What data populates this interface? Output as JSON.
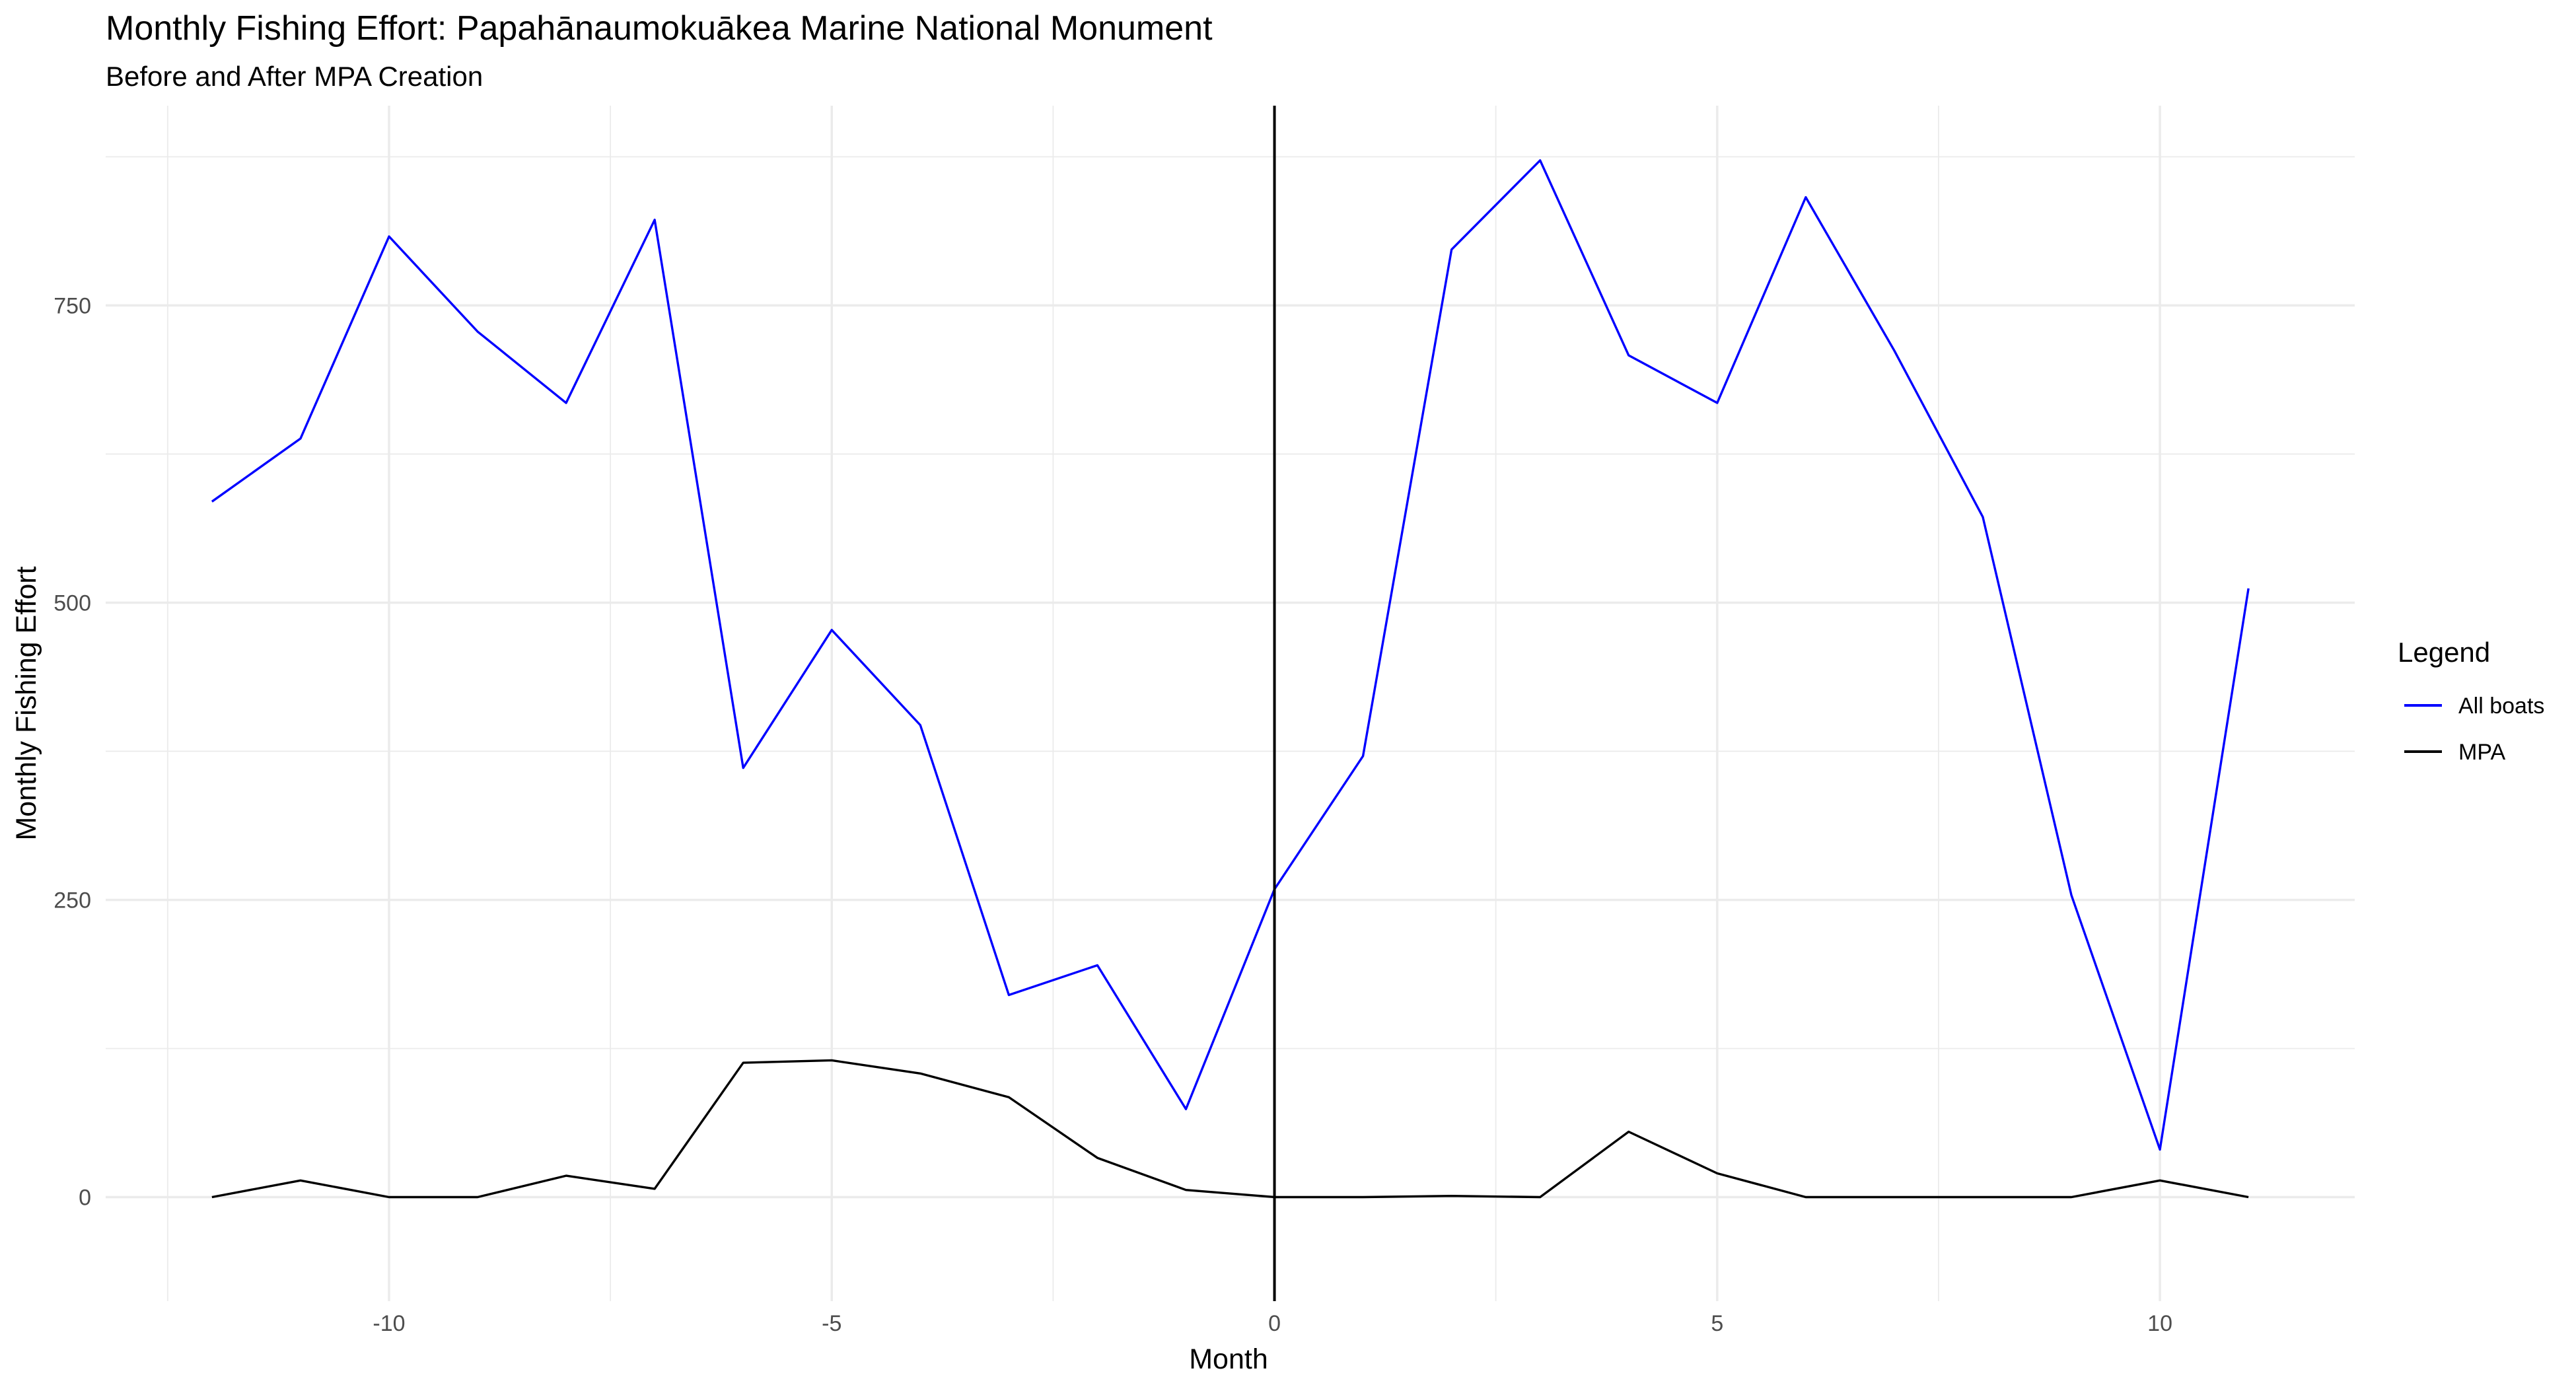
{
  "chart_data": {
    "type": "line",
    "title": "Monthly Fishing Effort: Papahānaumokuākea Marine National Monument",
    "subtitle": "Before and After MPA Creation",
    "xlabel": "Month",
    "ylabel": "Monthly Fishing Effort",
    "xlim": [
      -13.2,
      12.2
    ],
    "ylim": [
      -87.5,
      918
    ],
    "x_ticks": [
      -10,
      -5,
      0,
      5,
      10
    ],
    "x_tick_labels": [
      "-10",
      "-5",
      "0",
      "5",
      "10"
    ],
    "y_ticks": [
      0,
      250,
      500,
      750
    ],
    "y_tick_labels": [
      "0",
      "250",
      "500",
      "750"
    ],
    "grid": true,
    "legend": {
      "title": "Legend",
      "placement": "right"
    },
    "vline_x": 0,
    "x": [
      -12,
      -11,
      -10,
      -9,
      -8,
      -7,
      -6,
      -5,
      -4,
      -3,
      -2,
      -1,
      0,
      1,
      2,
      3,
      4,
      5,
      6,
      7,
      8,
      9,
      10,
      11
    ],
    "series": [
      {
        "name": "All boats",
        "color": "#0000ff",
        "values": [
          585,
          638,
          808,
          728,
          668,
          822,
          361,
          477,
          397,
          170,
          195,
          74,
          259,
          371,
          797,
          872,
          708,
          668,
          841,
          712,
          572,
          254,
          40,
          512
        ]
      },
      {
        "name": "MPA",
        "color": "#000000",
        "values": [
          0,
          14,
          0,
          0,
          18,
          7,
          113,
          115,
          104,
          84,
          33,
          6,
          0,
          0,
          1,
          0,
          55,
          20,
          0,
          0,
          0,
          0,
          14,
          0
        ]
      }
    ]
  }
}
